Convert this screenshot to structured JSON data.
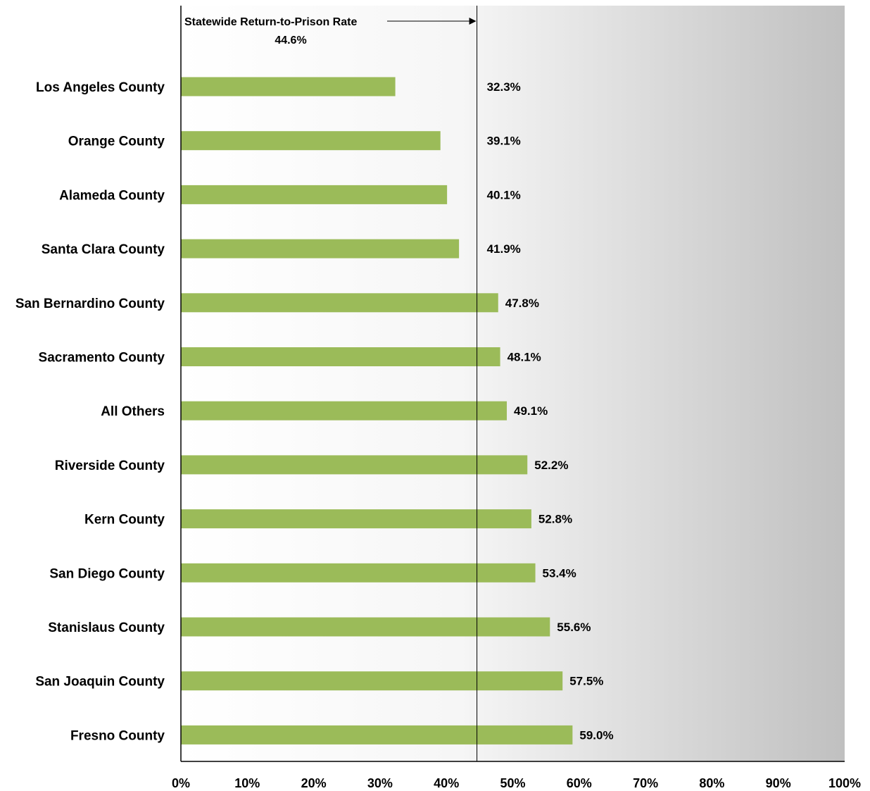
{
  "chart_data": {
    "type": "bar",
    "orientation": "horizontal",
    "categories": [
      "Los Angeles County",
      "Orange County",
      "Alameda County",
      "Santa Clara County",
      "San Bernardino County",
      "Sacramento County",
      "All Others",
      "Riverside County",
      "Kern County",
      "San Diego County",
      "Stanislaus County",
      "San Joaquin County",
      "Fresno County"
    ],
    "values": [
      32.3,
      39.1,
      40.1,
      41.9,
      47.8,
      48.1,
      49.1,
      52.2,
      52.8,
      53.4,
      55.6,
      57.5,
      59.0
    ],
    "value_labels": [
      "32.3%",
      "39.1%",
      "40.1%",
      "41.9%",
      "47.8%",
      "48.1%",
      "49.1%",
      "52.2%",
      "52.8%",
      "53.4%",
      "55.6%",
      "57.5%",
      "59.0%"
    ],
    "xlim": [
      0,
      100
    ],
    "x_ticks": [
      0,
      10,
      20,
      30,
      40,
      50,
      60,
      70,
      80,
      90,
      100
    ],
    "x_tick_labels": [
      "0%",
      "10%",
      "20%",
      "30%",
      "40%",
      "50%",
      "60%",
      "70%",
      "80%",
      "90%",
      "100%"
    ],
    "reference_line": {
      "value": 44.6,
      "label": "Statewide Return-to-Prison Rate",
      "value_label": "44.6%"
    },
    "bar_color": "#9bbb59",
    "background_gradient": [
      "#ffffff",
      "#c0c0c0"
    ],
    "grid": false,
    "legend": "none"
  }
}
